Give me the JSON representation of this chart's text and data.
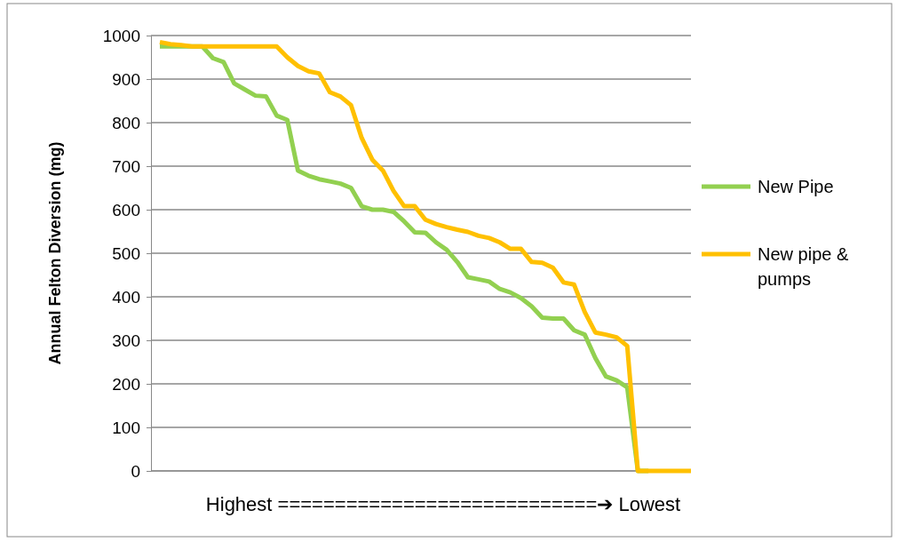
{
  "chart_data": {
    "type": "line",
    "ylabel": "Annual Felton Diversion (mg)",
    "xlabel": "Highest ============================➔ Lowest",
    "categories": [
      null,
      null,
      null,
      null,
      null,
      null,
      null,
      null,
      null,
      null,
      null,
      null,
      null,
      null,
      null,
      null,
      null,
      null,
      null,
      null,
      null,
      null,
      null,
      null,
      null,
      null,
      null,
      null,
      null,
      null,
      null,
      null,
      null,
      null,
      null,
      null,
      null,
      null,
      null,
      null,
      null,
      null,
      null,
      null,
      null,
      null,
      null,
      null,
      null,
      null,
      null
    ],
    "ylim": [
      0,
      1000
    ],
    "yticks": [
      0,
      100,
      200,
      300,
      400,
      500,
      600,
      700,
      800,
      900,
      1000
    ],
    "grid": "y",
    "legend": "right",
    "marker": "none",
    "line_style": "solid",
    "series": [
      {
        "name": "New Pipe",
        "color": "#92d050",
        "values": [
          975,
          975,
          975,
          975,
          975,
          948,
          939,
          890,
          876,
          862,
          860,
          816,
          806,
          690,
          678,
          670,
          665,
          660,
          650,
          608,
          600,
          600,
          595,
          573,
          548,
          547,
          525,
          508,
          480,
          445,
          440,
          435,
          418,
          410,
          397,
          378,
          352,
          350,
          350,
          323,
          313,
          259,
          217,
          208,
          192,
          0,
          0,
          null,
          null,
          null,
          null
        ]
      },
      {
        "name": "New pipe & pumps",
        "color": "#ffc000",
        "values": [
          985,
          980,
          978,
          975,
          975,
          975,
          975,
          975,
          975,
          975,
          975,
          975,
          950,
          930,
          918,
          913,
          870,
          860,
          840,
          765,
          715,
          690,
          643,
          608,
          608,
          577,
          567,
          560,
          554,
          549,
          540,
          535,
          525,
          510,
          510,
          480,
          478,
          467,
          433,
          428,
          365,
          318,
          313,
          307,
          287,
          0,
          0,
          0,
          0,
          0,
          0
        ]
      }
    ]
  }
}
